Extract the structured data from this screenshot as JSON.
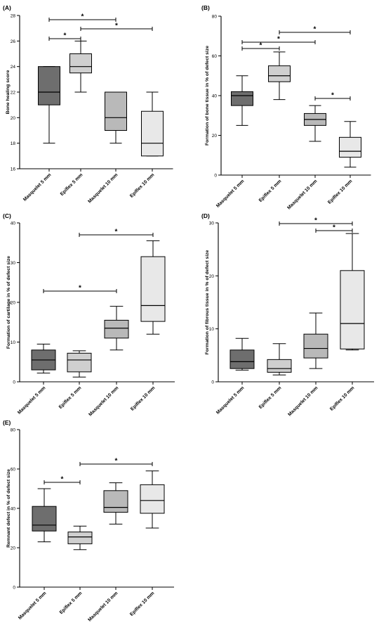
{
  "colors": {
    "masquelet_5": "#6e6e6e",
    "epiflex_5": "#cfcfcf",
    "masquelet_10": "#b9b9b9",
    "epiflex_10": "#e8e8e8",
    "axis": "#000000"
  },
  "chart_data": [
    {
      "type": "box",
      "panel_label": "(A)",
      "ylabel": "Bone healing score",
      "ylim": [
        16,
        28
      ],
      "yticks": [
        16,
        18,
        20,
        22,
        24,
        26,
        28
      ],
      "categories": [
        "Masquelet 5 mm",
        "Epiflex 5 mm",
        "Masquelet 10 mm",
        "Epiflex 10 mm"
      ],
      "boxes": [
        {
          "min": 18,
          "q1": 21,
          "median": 22,
          "q3": 24,
          "max": 24
        },
        {
          "min": 22,
          "q1": 23.5,
          "median": 24,
          "q3": 25,
          "max": 26
        },
        {
          "min": 18,
          "q1": 19,
          "median": 20,
          "q3": 22,
          "max": 22
        },
        {
          "min": 17,
          "q1": 17,
          "median": 18,
          "q3": 20.5,
          "max": 22
        }
      ],
      "significance": [
        {
          "from": 0,
          "to": 2,
          "label": "*"
        },
        {
          "from": 0,
          "to": 1,
          "label": "*"
        },
        {
          "from": 1,
          "to": 3,
          "label": "*"
        }
      ]
    },
    {
      "type": "box",
      "panel_label": "(B)",
      "ylabel": "Formation of bone tissue in % of defect size",
      "ylim": [
        0,
        80
      ],
      "yticks": [
        0,
        20,
        40,
        60,
        80
      ],
      "categories": [
        "Masquelet 5 mm",
        "Epiflex 5 mm",
        "Masquelet 10 mm",
        "Epiflex 10 mm"
      ],
      "boxes": [
        {
          "min": 25,
          "q1": 35,
          "median": 40,
          "q3": 42,
          "max": 50
        },
        {
          "min": 38,
          "q1": 47,
          "median": 50,
          "q3": 55,
          "max": 62
        },
        {
          "min": 17,
          "q1": 25,
          "median": 28,
          "q3": 31,
          "max": 35
        },
        {
          "min": 4,
          "q1": 9,
          "median": 12,
          "q3": 19,
          "max": 27
        }
      ],
      "significance": [
        {
          "from": 1,
          "to": 3,
          "label": "*"
        },
        {
          "from": 0,
          "to": 2,
          "label": "*"
        },
        {
          "from": 0,
          "to": 1,
          "label": "*"
        },
        {
          "from": 2,
          "to": 3,
          "label": "*"
        }
      ]
    },
    {
      "type": "box",
      "panel_label": "(C)",
      "ylabel": "Formation of cartilage in % of defect size",
      "ylim": [
        0,
        40
      ],
      "yticks": [
        0,
        10,
        20,
        30,
        40
      ],
      "categories": [
        "Masquelet 5 mm",
        "Epiflex 5 mm",
        "Masquelet 10 mm",
        "Epiflex 10 mm"
      ],
      "boxes": [
        {
          "min": 2.2,
          "q1": 3,
          "median": 5.5,
          "q3": 8,
          "max": 9.5
        },
        {
          "min": 1.2,
          "q1": 2.5,
          "median": 5.5,
          "q3": 7.2,
          "max": 7.8
        },
        {
          "min": 8,
          "q1": 11,
          "median": 13.5,
          "q3": 15.5,
          "max": 19
        },
        {
          "min": 12,
          "q1": 15.2,
          "median": 19.2,
          "q3": 31.5,
          "max": 35.5
        }
      ],
      "significance": [
        {
          "from": 1,
          "to": 3,
          "label": "*"
        },
        {
          "from": 0,
          "to": 2,
          "label": "*"
        }
      ]
    },
    {
      "type": "box",
      "panel_label": "(D)",
      "ylabel": "Formation of fibrous tissue in % of defect size",
      "ylim": [
        0,
        30
      ],
      "yticks": [
        0,
        10,
        20,
        30
      ],
      "categories": [
        "Masquelet 5 mm",
        "Epiflex 5 mm",
        "Masquelet 10 mm",
        "Epiflex 10 mm"
      ],
      "boxes": [
        {
          "min": 2.2,
          "q1": 2.5,
          "median": 3.8,
          "q3": 6,
          "max": 8.2
        },
        {
          "min": 1.3,
          "q1": 1.8,
          "median": 2.5,
          "q3": 4.2,
          "max": 7.2
        },
        {
          "min": 2.5,
          "q1": 4.5,
          "median": 6.3,
          "q3": 9,
          "max": 13
        },
        {
          "min": 6,
          "q1": 6.2,
          "median": 11,
          "q3": 21,
          "max": 28
        }
      ],
      "significance": [
        {
          "from": 1,
          "to": 3,
          "label": "*"
        },
        {
          "from": 2,
          "to": 3,
          "label": "*"
        }
      ]
    },
    {
      "type": "box",
      "panel_label": "(E)",
      "ylabel": "Remnant defect in % of defect size",
      "ylim": [
        0,
        80
      ],
      "yticks": [
        0,
        20,
        40,
        60,
        80
      ],
      "categories": [
        "Masquelet 5 mm",
        "Epiflex 5 mm",
        "Masquelet 10 mm",
        "Epiflex 10 mm"
      ],
      "boxes": [
        {
          "min": 23,
          "q1": 28.5,
          "median": 31.5,
          "q3": 41,
          "max": 50
        },
        {
          "min": 19,
          "q1": 22,
          "median": 25.5,
          "q3": 28,
          "max": 31
        },
        {
          "min": 32,
          "q1": 38,
          "median": 40.5,
          "q3": 49,
          "max": 53
        },
        {
          "min": 30,
          "q1": 37.5,
          "median": 44,
          "q3": 52,
          "max": 59
        }
      ],
      "significance": [
        {
          "from": 0,
          "to": 1,
          "label": "*"
        },
        {
          "from": 1,
          "to": 3,
          "label": "*"
        }
      ]
    }
  ]
}
